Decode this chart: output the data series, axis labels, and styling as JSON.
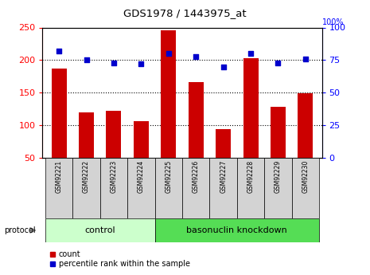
{
  "title": "GDS1978 / 1443975_at",
  "samples": [
    "GSM92221",
    "GSM92222",
    "GSM92223",
    "GSM92224",
    "GSM92225",
    "GSM92226",
    "GSM92227",
    "GSM92228",
    "GSM92229",
    "GSM92230"
  ],
  "counts": [
    187,
    120,
    122,
    106,
    246,
    167,
    95,
    203,
    128,
    149
  ],
  "percentile_ranks": [
    82,
    75,
    73,
    72,
    80,
    78,
    70,
    80,
    73,
    76
  ],
  "ylim_left": [
    50,
    250
  ],
  "ylim_right": [
    0,
    100
  ],
  "yticks_left": [
    50,
    100,
    150,
    200,
    250
  ],
  "yticks_right": [
    0,
    25,
    50,
    75,
    100
  ],
  "bar_color": "#cc0000",
  "dot_color": "#0000cc",
  "control_group": [
    0,
    1,
    2,
    3
  ],
  "knockdown_group": [
    4,
    5,
    6,
    7,
    8,
    9
  ],
  "control_label": "control",
  "knockdown_label": "basonuclin knockdown",
  "protocol_label": "protocol",
  "legend_count": "count",
  "legend_percentile": "percentile rank within the sample",
  "control_bg": "#ccffcc",
  "knockdown_bg": "#55dd55",
  "xlabel_bg": "#d3d3d3",
  "fig_bg": "#ffffff"
}
